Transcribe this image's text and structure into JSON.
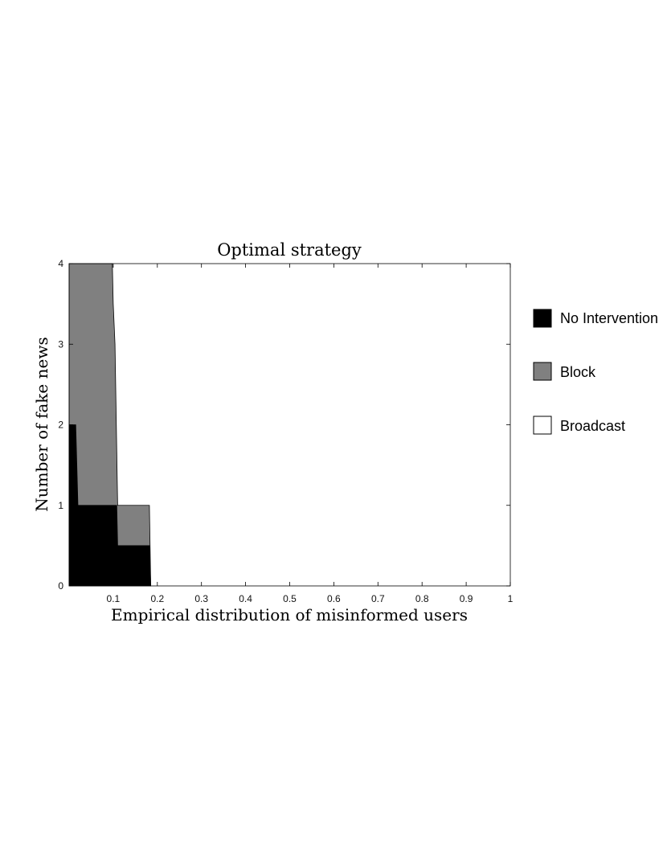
{
  "chart_data": {
    "type": "area",
    "title": "Optimal strategy",
    "xlabel": "Empirical distribution of misinformed users",
    "ylabel": "Number of fake news",
    "xlim": [
      0,
      1
    ],
    "ylim": [
      0,
      4
    ],
    "x_ticks": [
      0.1,
      0.2,
      0.3,
      0.4,
      0.5,
      0.6,
      0.7,
      0.8,
      0.9,
      1
    ],
    "x_tick_labels": [
      "0.1",
      "0.2",
      "0.3",
      "0.4",
      "0.5",
      "0.6",
      "0.7",
      "0.8",
      "0.9",
      "1"
    ],
    "y_ticks": [
      0,
      1,
      2,
      3,
      4
    ],
    "y_tick_labels": [
      "0",
      "1",
      "2",
      "3",
      "4"
    ],
    "grid": false,
    "legend_position": "right",
    "series": [
      {
        "name": "No Intervention",
        "color": "#000000",
        "boundary": [
          {
            "x": 0.0,
            "y": 2.0
          },
          {
            "x": 0.015,
            "y": 2.0
          },
          {
            "x": 0.02,
            "y": 1.0
          },
          {
            "x": 0.108,
            "y": 1.0
          },
          {
            "x": 0.11,
            "y": 0.5
          },
          {
            "x": 0.182,
            "y": 0.5
          },
          {
            "x": 0.185,
            "y": 0.0
          }
        ]
      },
      {
        "name": "Block",
        "color": "#808080",
        "boundary": [
          {
            "x": 0.0,
            "y": 4.0
          },
          {
            "x": 0.098,
            "y": 4.0
          },
          {
            "x": 0.1,
            "y": 3.5
          },
          {
            "x": 0.104,
            "y": 3.0
          },
          {
            "x": 0.107,
            "y": 2.0
          },
          {
            "x": 0.11,
            "y": 1.0
          },
          {
            "x": 0.182,
            "y": 1.0
          },
          {
            "x": 0.185,
            "y": 0.0
          }
        ]
      },
      {
        "name": "Broadcast",
        "color": "#ffffff"
      }
    ]
  }
}
